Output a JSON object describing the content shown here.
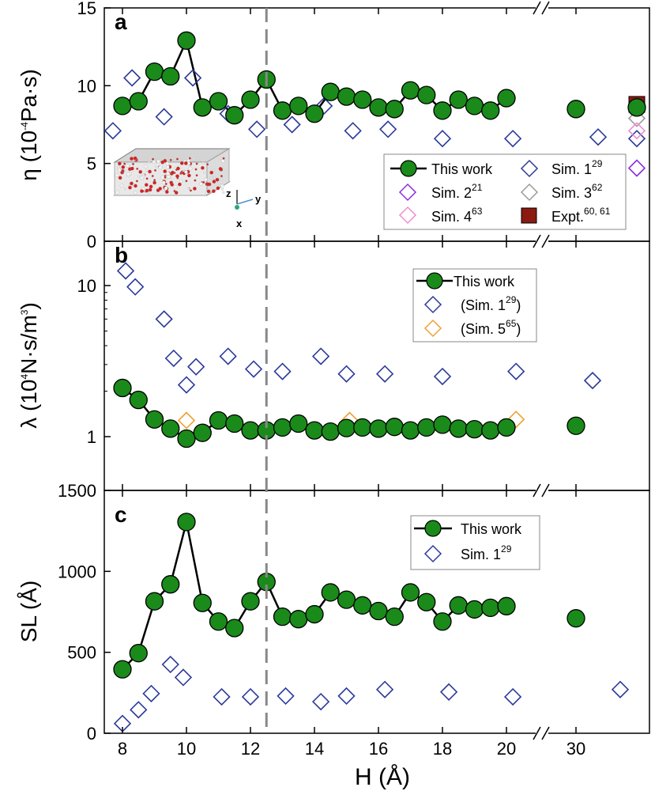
{
  "figure": {
    "xlabel": "H (Å)",
    "x_ticks": [
      "8",
      "10",
      "12",
      "14",
      "16",
      "18",
      "20",
      "30"
    ],
    "colors": {
      "this_work_fill": "#1a8a1a",
      "sim1": "#2b3a9a",
      "sim2": "#8a2be2",
      "sim3": "#9a9a9a",
      "sim4": "#f08ccf",
      "sim5": "#f0a030",
      "expt": "#8b1a10",
      "dashed_line": "#888888"
    },
    "dashed_line_x": 12.5
  },
  "chart_data": [
    {
      "panel": "a",
      "type": "scatter",
      "ylabel_main": "η (10",
      "ylabel_exp": "-4",
      "ylabel_tail": "Pa·s)",
      "ylim": [
        0,
        15
      ],
      "yticks": [
        "0",
        "5",
        "10",
        "15"
      ],
      "inset_axes": {
        "z": "z",
        "y": "y",
        "x": "x"
      },
      "series": [
        {
          "name": "This work",
          "marker": "circle-line",
          "x": [
            8,
            8.5,
            9,
            9.5,
            10,
            10.5,
            11,
            11.5,
            12,
            12.5,
            13,
            13.5,
            14,
            14.5,
            15,
            15.5,
            16,
            16.5,
            17,
            17.5,
            18,
            18.5,
            19,
            19.5,
            20
          ],
          "values": [
            8.7,
            9.0,
            10.9,
            10.6,
            12.9,
            8.6,
            9.0,
            8.1,
            9.1,
            10.4,
            8.4,
            8.7,
            8.2,
            9.6,
            9.3,
            9.1,
            8.6,
            8.5,
            9.7,
            9.4,
            8.4,
            9.1,
            8.7,
            8.4,
            9.2
          ],
          "break_x": [
            30,
            38
          ],
          "break_values": [
            8.5,
            8.6
          ]
        },
        {
          "name": "Sim. 1",
          "sup": "29",
          "marker": "diamond",
          "x": [
            7.7,
            8.3,
            9.3,
            10.2,
            11.3,
            12.2,
            13.3,
            14.3,
            15.2,
            16.3,
            18.0,
            20.2
          ],
          "values": [
            7.1,
            10.5,
            8.0,
            10.5,
            8.2,
            7.2,
            7.5,
            8.7,
            7.1,
            7.2,
            6.6,
            6.6
          ],
          "break_x": [
            32,
            38
          ],
          "break_values": [
            6.7,
            6.6
          ]
        },
        {
          "name": "Sim. 2",
          "sup": "21",
          "marker": "diamond",
          "break_x": [
            38
          ],
          "break_values": [
            4.7
          ]
        },
        {
          "name": "Sim. 3",
          "sup": "62",
          "marker": "diamond",
          "break_x": [
            38
          ],
          "break_values": [
            7.9
          ]
        },
        {
          "name": "Sim. 4",
          "sup": "63",
          "marker": "diamond",
          "break_x": [
            38
          ],
          "break_values": [
            7.1
          ]
        },
        {
          "name": "Expt.",
          "sup": "60, 61",
          "marker": "square",
          "break_x": [
            38
          ],
          "break_values": [
            8.8
          ]
        }
      ]
    },
    {
      "panel": "b",
      "type": "scatter",
      "yscale": "log",
      "ylabel_main": "λ (10",
      "ylabel_exp": "4",
      "ylabel_tail": "N·s/m",
      "ylabel_exp2": "3",
      "ylabel_close": ")",
      "ylim": [
        0.7,
        20
      ],
      "yticks": [
        "1",
        "10"
      ],
      "ytick_values": [
        1,
        10
      ],
      "series": [
        {
          "name": "This work",
          "marker": "circle-line",
          "x": [
            8,
            8.5,
            9,
            9.5,
            10,
            10.5,
            11,
            11.5,
            12,
            12.5,
            13,
            13.5,
            14,
            14.5,
            15,
            15.5,
            16,
            16.5,
            17,
            17.5,
            18,
            18.5,
            19,
            19.5,
            20
          ],
          "values": [
            2.1,
            1.75,
            1.3,
            1.13,
            0.97,
            1.06,
            1.28,
            1.22,
            1.1,
            1.1,
            1.15,
            1.22,
            1.1,
            1.08,
            1.14,
            1.15,
            1.13,
            1.16,
            1.1,
            1.15,
            1.2,
            1.13,
            1.12,
            1.1,
            1.15
          ],
          "break_x": [
            30
          ],
          "break_values": [
            1.18
          ]
        },
        {
          "name": "(Sim. 1",
          "sup": "29",
          "close": ")",
          "marker": "diamond",
          "x": [
            8.1,
            8.4,
            9.3,
            9.6,
            10.0,
            10.3,
            11.3,
            12.1,
            13.0,
            14.2,
            15.0,
            16.2,
            18.0,
            20.3
          ],
          "values": [
            12.5,
            9.8,
            6.0,
            3.3,
            2.2,
            2.9,
            3.4,
            2.8,
            2.7,
            3.4,
            2.6,
            2.6,
            2.5,
            2.7
          ],
          "break_x": [
            31.5
          ],
          "break_values": [
            2.35
          ]
        },
        {
          "name": "(Sim. 5",
          "sup": "65",
          "close": ")",
          "marker": "diamond",
          "x": [
            10.0,
            15.1,
            20.3
          ],
          "values": [
            1.28,
            1.28,
            1.3
          ]
        }
      ]
    },
    {
      "panel": "c",
      "type": "scatter",
      "ylabel_main": "SL (Å)",
      "ylim": [
        0,
        1500
      ],
      "yticks": [
        "0",
        "500",
        "1000",
        "1500"
      ],
      "series": [
        {
          "name": "This work",
          "marker": "circle-line",
          "x": [
            8,
            8.5,
            9,
            9.5,
            10,
            10.5,
            11,
            11.5,
            12,
            12.5,
            13,
            13.5,
            14,
            14.5,
            15,
            15.5,
            16,
            16.5,
            17,
            17.5,
            18,
            18.5,
            19,
            19.5,
            20
          ],
          "values": [
            395,
            495,
            815,
            920,
            1305,
            805,
            690,
            650,
            815,
            935,
            720,
            705,
            735,
            870,
            825,
            790,
            755,
            720,
            870,
            810,
            690,
            790,
            765,
            775,
            785
          ],
          "break_x": [
            30
          ],
          "break_values": [
            710
          ]
        },
        {
          "name": "Sim. 1",
          "sup": "29",
          "marker": "diamond",
          "x": [
            8.0,
            8.5,
            8.9,
            9.5,
            9.9,
            11.1,
            12.0,
            13.1,
            14.2,
            15.0,
            16.2,
            18.2,
            20.2
          ],
          "values": [
            60,
            145,
            245,
            425,
            345,
            225,
            225,
            230,
            195,
            230,
            270,
            255,
            225
          ],
          "break_x": [
            34
          ],
          "break_values": [
            270
          ]
        }
      ]
    }
  ]
}
